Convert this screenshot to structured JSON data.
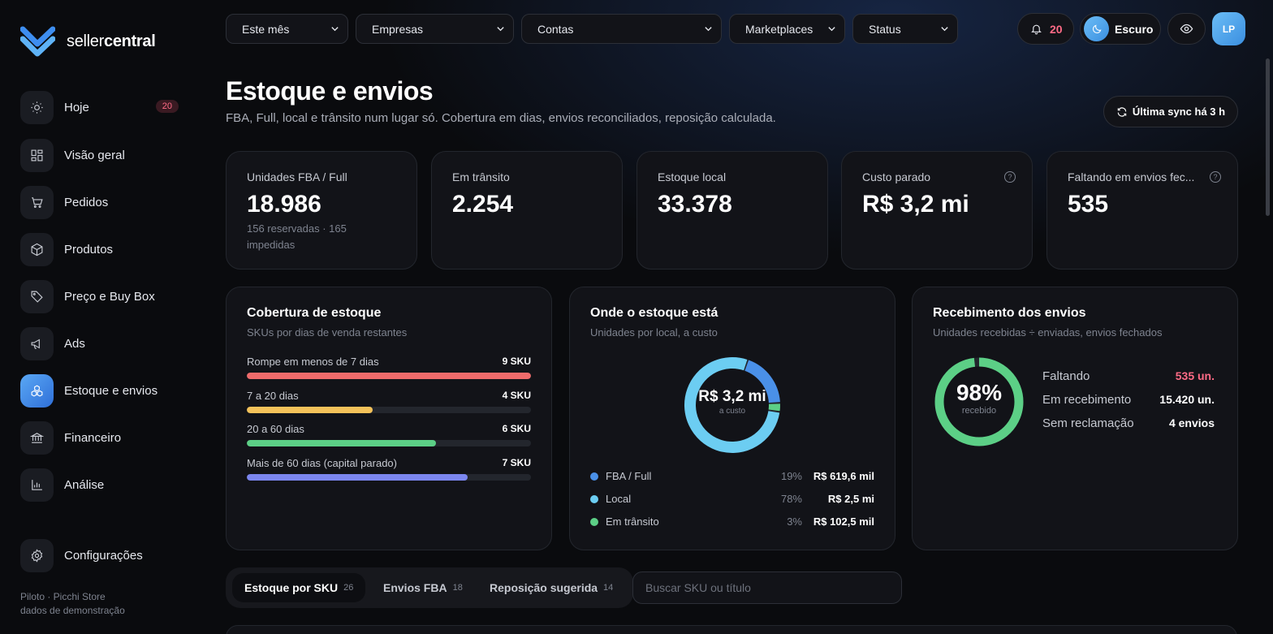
{
  "brand": {
    "prefix": "seller",
    "suffix": "central"
  },
  "sidebar": {
    "items": [
      {
        "label": "Hoje",
        "icon": "sun-icon",
        "badge": "20"
      },
      {
        "label": "Visão geral",
        "icon": "grid-icon"
      },
      {
        "label": "Pedidos",
        "icon": "cart-icon"
      },
      {
        "label": "Produtos",
        "icon": "box-icon"
      },
      {
        "label": "Preço e Buy Box",
        "icon": "tag-icon"
      },
      {
        "label": "Ads",
        "icon": "megaphone-icon"
      },
      {
        "label": "Estoque e envios",
        "icon": "boxes-icon",
        "active": true
      },
      {
        "label": "Financeiro",
        "icon": "bank-icon"
      },
      {
        "label": "Análise",
        "icon": "chart-icon"
      }
    ],
    "settings": "Configurações",
    "footer_line1": "Piloto · Picchi Store",
    "footer_line2": "dados de demonstração"
  },
  "filters": [
    "Este mês",
    "Empresas",
    "Contas",
    "Marketplaces",
    "Status"
  ],
  "header": {
    "notifications": "20",
    "theme_label": "Escuro",
    "avatar": "LP"
  },
  "page": {
    "title": "Estoque e envios",
    "subtitle": "FBA, Full, local e trânsito num lugar só. Cobertura em dias, envios reconciliados, reposição calculada.",
    "sync_label": "Última sync há 3 h"
  },
  "kpis": [
    {
      "label": "Unidades FBA / Full",
      "value": "18.986",
      "note": "156 reservadas · 165 impedidas"
    },
    {
      "label": "Em trânsito",
      "value": "2.254"
    },
    {
      "label": "Estoque local",
      "value": "33.378"
    },
    {
      "label": "Custo parado",
      "value": "R$ 3,2 mi",
      "help": "?"
    },
    {
      "label": "Faltando em envios fec...",
      "value": "535",
      "help": "?"
    }
  ],
  "coverage": {
    "title": "Cobertura de estoque",
    "subtitle": "SKUs por dias de venda restantes",
    "rows": [
      {
        "label": "Rompe em menos de 7 dias",
        "value": "9 SKU",
        "fill": 1.0,
        "color": "#ef6b6b"
      },
      {
        "label": "7 a 20 dias",
        "value": "4 SKU",
        "fill": 0.444,
        "color": "#f4c25a"
      },
      {
        "label": "20 a 60 dias",
        "value": "6 SKU",
        "fill": 0.667,
        "color": "#5ccf86"
      },
      {
        "label": "Mais de 60 dias (capital parado)",
        "value": "7 SKU",
        "fill": 0.778,
        "color": "#7b86ef"
      }
    ]
  },
  "location": {
    "title": "Onde o estoque está",
    "subtitle": "Unidades por local, a custo",
    "center_value": "R$ 3,2 mi",
    "center_label": "a custo",
    "slices": [
      {
        "name": "FBA / Full",
        "pct": "19%",
        "share": 0.19,
        "value": "R$ 619,6 mil",
        "color": "#4a90e8"
      },
      {
        "name": "Local",
        "pct": "78%",
        "share": 0.78,
        "value": "R$ 2,5 mi",
        "color": "#6ccdf2"
      },
      {
        "name": "Em trânsito",
        "pct": "3%",
        "share": 0.03,
        "value": "R$ 102,5 mil",
        "color": "#5ccf86"
      }
    ]
  },
  "receipt": {
    "title": "Recebimento dos envios",
    "subtitle": "Unidades recebidas ÷ enviadas, envios fechados",
    "percent": "98%",
    "percent_value": 0.98,
    "percent_label": "recebido",
    "rows": [
      {
        "label": "Faltando",
        "value": "535 un.",
        "color": "#ff6b86"
      },
      {
        "label": "Em recebimento",
        "value": "15.420 un.",
        "color": "#ffffff"
      },
      {
        "label": "Sem reclamação",
        "value": "4 envios",
        "color": "#ffffff"
      }
    ]
  },
  "tabs": [
    {
      "label": "Estoque por SKU",
      "count": "26",
      "active": true
    },
    {
      "label": "Envios FBA",
      "count": "18"
    },
    {
      "label": "Reposição sugerida",
      "count": "14"
    }
  ],
  "search": {
    "placeholder": "Buscar SKU ou título",
    "value": ""
  }
}
